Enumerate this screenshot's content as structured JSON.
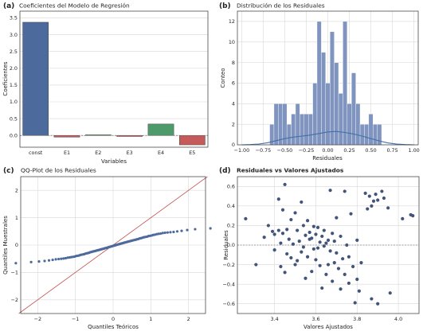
{
  "chart_data": [
    {
      "panel": "(a)",
      "type": "bar",
      "title": "Coeficientes del Modelo de Regresión",
      "xlabel": "Variables",
      "ylabel": "Coeficientes",
      "categories": [
        "const",
        "E1",
        "E2",
        "E3",
        "E4",
        "E5"
      ],
      "values": [
        3.37,
        -0.05,
        0.02,
        -0.03,
        0.34,
        -0.28
      ],
      "colors": [
        "#4c6a9b",
        "#c45a5a",
        "#5a8f5a",
        "#c45a5a",
        "#4f9a6a",
        "#c45a5a"
      ],
      "ylim": [
        -0.35,
        3.7
      ],
      "yticks": [
        "0.0",
        "0.5",
        "1.0",
        "1.5",
        "2.0",
        "2.5",
        "3.0",
        "3.5"
      ],
      "grid": true
    },
    {
      "panel": "(b)",
      "type": "bar",
      "title": "Distribución de los Residuales",
      "xlabel": "Residuales",
      "ylabel": "Conteo",
      "bin_edges": [
        -0.675,
        -0.625,
        -0.575,
        -0.525,
        -0.475,
        -0.425,
        -0.375,
        -0.325,
        -0.275,
        -0.225,
        -0.175,
        -0.125,
        -0.075,
        -0.025,
        0.025,
        0.075,
        0.125,
        0.175,
        0.225,
        0.275,
        0.325,
        0.375,
        0.425,
        0.475,
        0.525,
        0.575,
        0.625
      ],
      "counts": [
        2,
        4,
        4,
        4,
        2,
        3,
        4,
        3,
        3,
        3,
        6,
        12,
        9,
        6,
        11,
        8,
        5,
        12,
        4,
        7,
        4,
        2,
        2,
        3,
        2,
        2
      ],
      "kde": {
        "x": [
          -1.0,
          -0.9,
          -0.8,
          -0.7,
          -0.6,
          -0.5,
          -0.4,
          -0.3,
          -0.2,
          -0.1,
          0.0,
          0.1,
          0.2,
          0.3,
          0.4,
          0.5,
          0.6,
          0.7,
          0.8,
          0.9,
          1.0
        ],
        "y": [
          0.0,
          0.02,
          0.08,
          0.2,
          0.4,
          0.6,
          0.75,
          0.85,
          0.95,
          1.1,
          1.25,
          1.3,
          1.2,
          1.05,
          0.85,
          0.6,
          0.38,
          0.18,
          0.07,
          0.02,
          0.0
        ]
      },
      "xlim": [
        -1.05,
        1.05
      ],
      "ylim": [
        0,
        13
      ],
      "xticks": [
        "−1.00",
        "−0.75",
        "−0.50",
        "−0.25",
        "0.00",
        "0.25",
        "0.50",
        "0.75",
        "1.00"
      ],
      "yticks": [
        "0",
        "2",
        "4",
        "6",
        "8",
        "10",
        "12"
      ],
      "colors": {
        "bars": "#8094c0",
        "kde": "#3f6fa8"
      },
      "grid": true
    },
    {
      "panel": "(c)",
      "type": "scatter",
      "title": "QQ-Plot de los Residuales",
      "xlabel": "Quantiles Teóricos",
      "ylabel": "Quantiles Muestrales",
      "sample_quantiles": [
        -0.66,
        -0.62,
        -0.6,
        -0.58,
        -0.56,
        -0.54,
        -0.52,
        -0.51,
        -0.5,
        -0.49,
        -0.48,
        -0.46,
        -0.45,
        -0.44,
        -0.43,
        -0.42,
        -0.4,
        -0.39,
        -0.38,
        -0.36,
        -0.35,
        -0.34,
        -0.33,
        -0.31,
        -0.3,
        -0.29,
        -0.28,
        -0.26,
        -0.25,
        -0.24,
        -0.23,
        -0.22,
        -0.21,
        -0.2,
        -0.19,
        -0.18,
        -0.17,
        -0.16,
        -0.15,
        -0.14,
        -0.13,
        -0.12,
        -0.11,
        -0.1,
        -0.09,
        -0.08,
        -0.07,
        -0.06,
        -0.05,
        -0.04,
        -0.03,
        -0.02,
        -0.01,
        0.0,
        0.01,
        0.02,
        0.03,
        0.04,
        0.05,
        0.06,
        0.07,
        0.08,
        0.09,
        0.1,
        0.11,
        0.12,
        0.13,
        0.14,
        0.15,
        0.16,
        0.17,
        0.18,
        0.19,
        0.2,
        0.21,
        0.22,
        0.24,
        0.25,
        0.26,
        0.28,
        0.29,
        0.3,
        0.31,
        0.33,
        0.34,
        0.35,
        0.37,
        0.38,
        0.4,
        0.41,
        0.42,
        0.44,
        0.45,
        0.46,
        0.47,
        0.48,
        0.5,
        0.52,
        0.55,
        0.58,
        0.61
      ],
      "reference_line": {
        "x": [
          -2.5,
          2.5
        ],
        "y": [
          -2.5,
          2.5
        ]
      },
      "xlim": [
        -2.45,
        2.45
      ],
      "ylim": [
        -2.5,
        2.5
      ],
      "xticks": [
        "−2",
        "−1",
        "0",
        "1",
        "2"
      ],
      "yticks": [
        "−2",
        "−1",
        "0",
        "1",
        "2"
      ],
      "colors": {
        "points": "#4c6a9b",
        "line": "#c0504d"
      },
      "grid": true
    },
    {
      "panel": "(d)",
      "type": "scatter",
      "title": "Residuales vs Valores Ajustados",
      "xlabel": "Valores Ajustados",
      "ylabel": "Residuales",
      "points": [
        [
          3.26,
          0.27
        ],
        [
          3.31,
          -0.2
        ],
        [
          3.35,
          0.08
        ],
        [
          3.37,
          0.2
        ],
        [
          3.39,
          0.14
        ],
        [
          3.4,
          0.11
        ],
        [
          3.4,
          -0.05
        ],
        [
          3.42,
          0.47
        ],
        [
          3.42,
          0.15
        ],
        [
          3.43,
          -0.22
        ],
        [
          3.43,
          0.02
        ],
        [
          3.44,
          0.36
        ],
        [
          3.44,
          0.12
        ],
        [
          3.45,
          0.62
        ],
        [
          3.45,
          -0.28
        ],
        [
          3.46,
          0.16
        ],
        [
          3.46,
          -0.09
        ],
        [
          3.47,
          0.06
        ],
        [
          3.48,
          -0.13
        ],
        [
          3.48,
          0.26
        ],
        [
          3.49,
          0.01
        ],
        [
          3.5,
          -0.2
        ],
        [
          3.5,
          0.33
        ],
        [
          3.51,
          0.15
        ],
        [
          3.51,
          -0.16
        ],
        [
          3.52,
          0.04
        ],
        [
          3.53,
          0.44
        ],
        [
          3.53,
          -0.07
        ],
        [
          3.54,
          0.2
        ],
        [
          3.54,
          -0.02
        ],
        [
          3.55,
          0.1
        ],
        [
          3.55,
          -0.34
        ],
        [
          3.56,
          0.25
        ],
        [
          3.56,
          -0.12
        ],
        [
          3.57,
          0.13
        ],
        [
          3.57,
          0.06
        ],
        [
          3.58,
          -0.27
        ],
        [
          3.58,
          0.07
        ],
        [
          3.59,
          -0.04
        ],
        [
          3.59,
          0.19
        ],
        [
          3.6,
          -0.15
        ],
        [
          3.6,
          0.11
        ],
        [
          3.61,
          0.18
        ],
        [
          3.61,
          -0.03
        ],
        [
          3.62,
          0.03
        ],
        [
          3.62,
          -0.21
        ],
        [
          3.63,
          0.09
        ],
        [
          3.63,
          -0.44
        ],
        [
          3.64,
          0.15
        ],
        [
          3.64,
          -0.01
        ],
        [
          3.65,
          -0.3
        ],
        [
          3.65,
          0.02
        ],
        [
          3.66,
          0.05
        ],
        [
          3.66,
          -0.2
        ],
        [
          3.67,
          -0.06
        ],
        [
          3.67,
          0.56
        ],
        [
          3.68,
          -0.37
        ],
        [
          3.68,
          0.12
        ],
        [
          3.69,
          -0.18
        ],
        [
          3.69,
          0.04
        ],
        [
          3.7,
          -0.08
        ],
        [
          3.7,
          0.28
        ],
        [
          3.71,
          -0.24
        ],
        [
          3.72,
          0.09
        ],
        [
          3.72,
          -0.45
        ],
        [
          3.73,
          -0.14
        ],
        [
          3.74,
          0.55
        ],
        [
          3.74,
          -0.3
        ],
        [
          3.75,
          0.0
        ],
        [
          3.76,
          -0.39
        ],
        [
          3.76,
          -0.12
        ],
        [
          3.77,
          0.32
        ],
        [
          3.78,
          -0.22
        ],
        [
          3.79,
          -0.59
        ],
        [
          3.8,
          -0.35
        ],
        [
          3.8,
          0.05
        ],
        [
          3.81,
          -0.47
        ],
        [
          3.82,
          -0.18
        ],
        [
          3.84,
          0.53
        ],
        [
          3.85,
          0.37
        ],
        [
          3.86,
          0.5
        ],
        [
          3.87,
          0.4
        ],
        [
          3.87,
          -0.55
        ],
        [
          3.88,
          0.45
        ],
        [
          3.89,
          0.52
        ],
        [
          3.9,
          -0.6
        ],
        [
          3.9,
          0.46
        ],
        [
          3.92,
          0.55
        ],
        [
          3.93,
          0.48
        ],
        [
          3.95,
          0.38
        ],
        [
          3.96,
          -0.49
        ],
        [
          4.02,
          0.27
        ],
        [
          4.06,
          0.31
        ],
        [
          4.07,
          0.3
        ]
      ],
      "zero_line": 0,
      "xlim": [
        3.22,
        4.1
      ],
      "ylim": [
        -0.7,
        0.7
      ],
      "xticks": [
        "3.4",
        "3.6",
        "3.8",
        "4.0"
      ],
      "yticks": [
        "−0.6",
        "−0.4",
        "−0.2",
        "0.0",
        "0.2",
        "0.4",
        "0.6"
      ],
      "colors": {
        "points": "#41557a",
        "zero_line": "#8a8a8a"
      },
      "grid": true
    }
  ]
}
